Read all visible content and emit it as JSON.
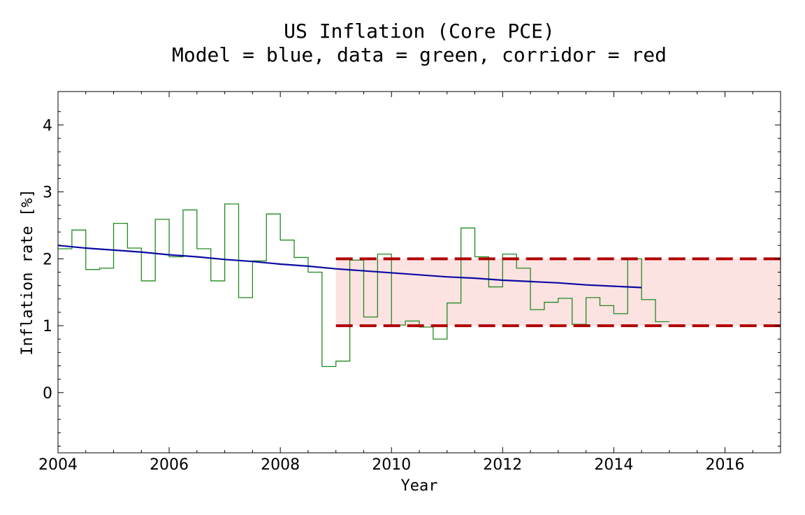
{
  "chart_data": {
    "type": "line",
    "title": "US Inflation (Core PCE)",
    "subtitle": "Model = blue, data = green, corridor = red",
    "xlabel": "Year",
    "ylabel": "Inflation rate [%]",
    "xlim": [
      2004,
      2017
    ],
    "ylim": [
      -0.9,
      4.5
    ],
    "x_ticks": [
      2004,
      2006,
      2008,
      2010,
      2012,
      2014,
      2016
    ],
    "y_ticks": [
      0,
      1,
      2,
      3,
      4
    ],
    "grid": false,
    "colors": {
      "model": "#0a0aa0",
      "data": "#1f8a1f",
      "corridor_line": "#b00000",
      "corridor_fill": "#fde2e2"
    },
    "corridor": {
      "x": [
        2009,
        2017
      ],
      "y": [
        1,
        2
      ]
    },
    "series": [
      {
        "role": "model",
        "x": [
          2004,
          2004.5,
          2005,
          2005.5,
          2006,
          2006.5,
          2007,
          2007.5,
          2008,
          2008.5,
          2009,
          2009.5,
          2010,
          2010.5,
          2011,
          2011.5,
          2012,
          2012.5,
          2013,
          2013.5,
          2014,
          2014.5
        ],
        "y": [
          2.2,
          2.16,
          2.13,
          2.1,
          2.06,
          2.03,
          1.99,
          1.96,
          1.92,
          1.89,
          1.85,
          1.82,
          1.79,
          1.76,
          1.73,
          1.71,
          1.68,
          1.66,
          1.64,
          1.61,
          1.59,
          1.57
        ]
      },
      {
        "role": "data",
        "step": "post",
        "x": [
          2004,
          2004.25,
          2004.5,
          2004.75,
          2005,
          2005.25,
          2005.5,
          2005.75,
          2006,
          2006.25,
          2006.5,
          2006.75,
          2007,
          2007.25,
          2007.5,
          2007.75,
          2008,
          2008.25,
          2008.5,
          2008.75,
          2009,
          2009.25,
          2009.5,
          2009.75,
          2010,
          2010.25,
          2010.5,
          2010.75,
          2011,
          2011.25,
          2011.5,
          2011.75,
          2012,
          2012.25,
          2012.5,
          2012.75,
          2013,
          2013.25,
          2013.5,
          2013.75,
          2014,
          2014.25,
          2014.5,
          2014.75,
          2015
        ],
        "y": [
          2.15,
          2.43,
          1.84,
          1.86,
          2.53,
          2.16,
          1.67,
          2.59,
          2.03,
          2.73,
          2.15,
          1.67,
          2.82,
          1.42,
          1.97,
          2.67,
          2.28,
          2.02,
          1.8,
          0.39,
          0.47,
          1.98,
          1.13,
          2.07,
          1.01,
          1.07,
          0.98,
          0.8,
          1.34,
          2.46,
          2.03,
          1.58,
          2.07,
          1.86,
          1.24,
          1.35,
          1.41,
          1.02,
          1.42,
          1.3,
          1.18,
          2.0,
          1.39,
          1.06,
          1.06
        ]
      }
    ]
  }
}
